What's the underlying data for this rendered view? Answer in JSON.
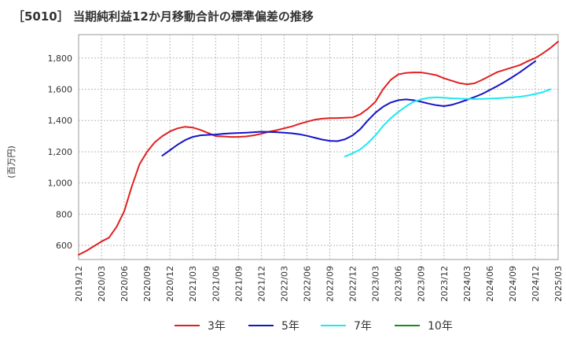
{
  "chart_data": {
    "type": "line",
    "title": "［5010］ 当期純利益12か月移動合計の標準偏差の推移",
    "ylabel": "(百万円)",
    "xlabel": "",
    "ylim": [
      510,
      1950
    ],
    "yticks": [
      600,
      800,
      1000,
      1200,
      1400,
      1600,
      1800
    ],
    "ytick_labels": [
      "600",
      "800",
      "1,000",
      "1,200",
      "1,400",
      "1,600",
      "1,800"
    ],
    "xticks": [
      "2019/12",
      "2020/03",
      "2020/06",
      "2020/09",
      "2020/12",
      "2021/03",
      "2021/06",
      "2021/09",
      "2021/12",
      "2022/03",
      "2022/06",
      "2022/09",
      "2022/12",
      "2023/03",
      "2023/06",
      "2023/09",
      "2023/12",
      "2024/03",
      "2024/06",
      "2024/09",
      "2024/12",
      "2025/03"
    ],
    "grid": true,
    "legend_position": "bottom",
    "series": [
      {
        "name": "3年",
        "color": "#e02020",
        "start_index": 0,
        "values": [
          540,
          565,
          595,
          625,
          650,
          720,
          820,
          980,
          1120,
          1200,
          1260,
          1300,
          1330,
          1350,
          1360,
          1355,
          1340,
          1320,
          1300,
          1298,
          1295,
          1295,
          1298,
          1305,
          1315,
          1328,
          1338,
          1350,
          1362,
          1378,
          1392,
          1405,
          1412,
          1415,
          1416,
          1418,
          1420,
          1440,
          1475,
          1520,
          1600,
          1660,
          1695,
          1705,
          1708,
          1708,
          1700,
          1690,
          1670,
          1655,
          1640,
          1632,
          1638,
          1660,
          1685,
          1710,
          1725,
          1740,
          1755,
          1780,
          1800,
          1830,
          1865,
          1905
        ]
      },
      {
        "name": "5年",
        "color": "#1414c8",
        "start_index": 11,
        "values": [
          1175,
          1210,
          1245,
          1275,
          1295,
          1305,
          1308,
          1310,
          1315,
          1318,
          1320,
          1322,
          1325,
          1328,
          1327,
          1325,
          1322,
          1318,
          1312,
          1302,
          1290,
          1278,
          1270,
          1268,
          1280,
          1305,
          1345,
          1400,
          1450,
          1488,
          1515,
          1530,
          1535,
          1530,
          1520,
          1508,
          1498,
          1492,
          1500,
          1515,
          1532,
          1550,
          1570,
          1595,
          1620,
          1648,
          1678,
          1710,
          1745,
          1780
        ]
      },
      {
        "name": "7年",
        "color": "#20e8f0",
        "start_index": 35,
        "values": [
          1170,
          1190,
          1215,
          1255,
          1305,
          1365,
          1415,
          1455,
          1490,
          1520,
          1535,
          1545,
          1548,
          1546,
          1542,
          1540,
          1538,
          1537,
          1538,
          1540,
          1542,
          1545,
          1548,
          1552,
          1560,
          1570,
          1582,
          1600
        ]
      },
      {
        "name": "10年",
        "color": "#1a8a1a",
        "start_index": 0,
        "values": []
      }
    ]
  }
}
